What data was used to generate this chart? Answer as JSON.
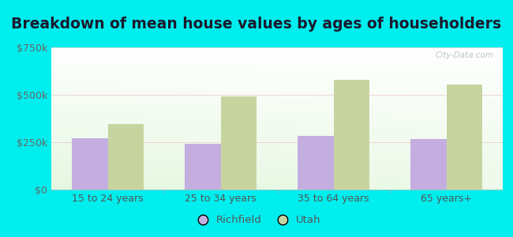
{
  "title": "Breakdown of mean house values by ages of householders",
  "categories": [
    "15 to 24 years",
    "25 to 34 years",
    "35 to 64 years",
    "65 years+"
  ],
  "richfield_values": [
    270000,
    240000,
    285000,
    265000
  ],
  "utah_values": [
    345000,
    490000,
    580000,
    555000
  ],
  "richfield_color": "#c4aee0",
  "utah_color": "#c8d4a0",
  "ylim": [
    0,
    750000
  ],
  "yticks": [
    0,
    250000,
    500000,
    750000
  ],
  "ytick_labels": [
    "$0",
    "$250k",
    "$500k",
    "$750k"
  ],
  "outer_background": "#00eeee",
  "bar_width": 0.32,
  "title_fontsize": 13.5,
  "tick_fontsize": 9,
  "legend_fontsize": 9.5,
  "watermark": "City-Data.com"
}
